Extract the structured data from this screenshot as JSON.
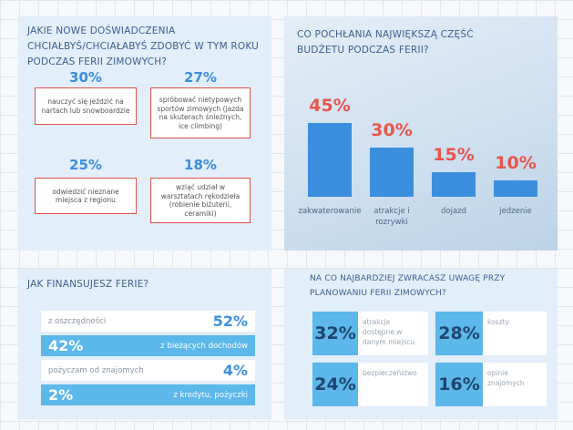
{
  "experiences": {
    "title": "JAKIE NOWE DOŚWIADCZENIA CHCIAŁBYŚ/CHCIAŁABYŚ ZDOBYĆ W TYM ROKU PODCZAS FERII ZIMOWYCH?",
    "items": [
      {
        "value": "30%",
        "label": "nauczyć się jeździć na nartach lub snowboardzie"
      },
      {
        "value": "27%",
        "label": "spróbować nietypowych sportów zimowych (jazda na skuterach śnieżnych, ice climbing)"
      },
      {
        "value": "25%",
        "label": "odwiedzić nieznane miejsca z regionu"
      },
      {
        "value": "18%",
        "label": "wziąć udział w warsztatach rękodzieła (robienie biżuterii, ceramiki)"
      }
    ]
  },
  "budget": {
    "type": "bar",
    "title": "CO POCHŁANIA NAJWIĘKSZĄ CZĘŚĆ BUDŻETU PODCZAS FERII?",
    "categories": [
      "zakwaterowanie",
      "atrakcje i rozrywki",
      "dojazd",
      "jedzenie"
    ],
    "values": [
      45,
      30,
      15,
      10
    ],
    "value_labels": [
      "45%",
      "30%",
      "15%",
      "10%"
    ],
    "color": "#3b8ede"
  },
  "financing": {
    "title": "JAK FINANSUJESZ FERIE?",
    "rows": [
      {
        "label": "z oszczędności",
        "value": "52%"
      },
      {
        "label": "z bieżących dochodów",
        "value": "42%"
      },
      {
        "label": "pożyczam od znajomych",
        "value": "4%"
      },
      {
        "label": "z kredytu, pożyczki",
        "value": "2%"
      }
    ]
  },
  "attention": {
    "title": "NA CO NAJBARDZIEJ ZWRACASZ UWAGĘ PRZY PLANOWANIU FERII ZIMOWYCH?",
    "items": [
      {
        "value": "32%",
        "label": "atrakcje dostępne w danym miejscu"
      },
      {
        "value": "28%",
        "label": "koszty"
      },
      {
        "value": "24%",
        "label": "bezpieczeństwo"
      },
      {
        "value": "16%",
        "label": "opinie znajomych"
      }
    ]
  }
}
